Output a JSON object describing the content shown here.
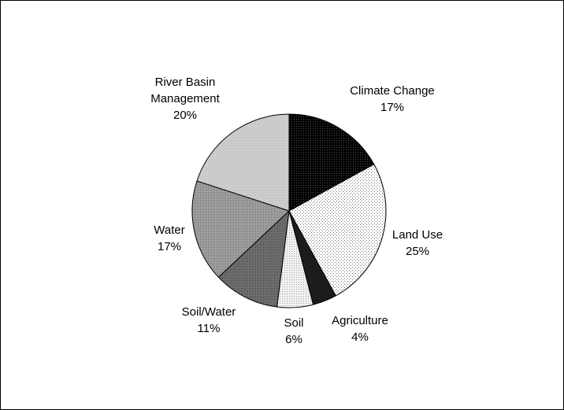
{
  "chart_data": {
    "type": "pie",
    "title": "",
    "slices": [
      {
        "label_lines": [
          "Climate Change"
        ],
        "pct_label": "17%",
        "value": 17,
        "fill": "#111111",
        "pattern": "dots-dark"
      },
      {
        "label_lines": [
          "Land Use"
        ],
        "pct_label": "25%",
        "value": 25,
        "fill": "#ffffff",
        "pattern": "dots-sparse"
      },
      {
        "label_lines": [
          "Agriculture"
        ],
        "pct_label": "4%",
        "value": 4,
        "fill": "#2a2a2a",
        "pattern": "solid"
      },
      {
        "label_lines": [
          "Soil"
        ],
        "pct_label": "6%",
        "value": 6,
        "fill": "#e4e4e4",
        "pattern": "dots-light"
      },
      {
        "label_lines": [
          "Soil/Water"
        ],
        "pct_label": "11%",
        "value": 11,
        "fill": "#6a6a6a",
        "pattern": "dots-mid"
      },
      {
        "label_lines": [
          "Water"
        ],
        "pct_label": "17%",
        "value": 17,
        "fill": "#9a9a9a",
        "pattern": "dots-mid2"
      },
      {
        "label_lines": [
          "River Basin",
          "Management"
        ],
        "pct_label": "20%",
        "value": 20,
        "fill": "#c8c8c8",
        "pattern": "dots-light2"
      }
    ],
    "start": "top",
    "direction": "clockwise",
    "legend": "none"
  }
}
